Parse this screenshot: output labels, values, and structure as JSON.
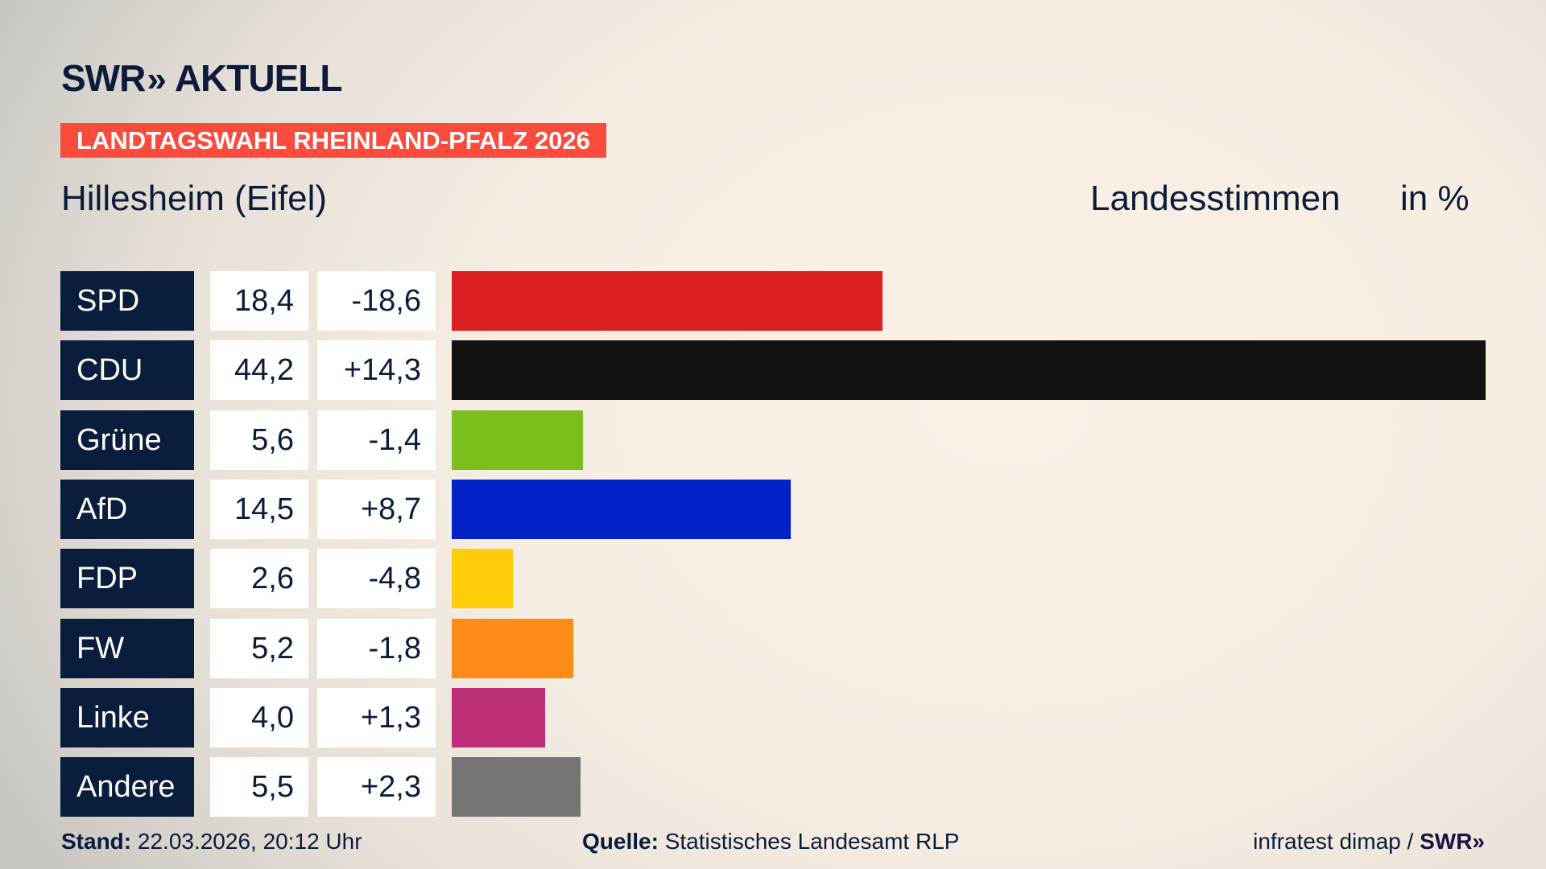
{
  "header": {
    "logo_text": "SWR",
    "logo_chevrons": "»",
    "logo_suffix": "AKTUELL",
    "banner": "LANDTAGSWAHL RHEINLAND-PFALZ 2026",
    "region": "Hillesheim (Eifel)",
    "metric": "Landesstimmen",
    "unit": "in %"
  },
  "chart_data": {
    "type": "bar",
    "orientation": "horizontal",
    "categories": [
      "SPD",
      "CDU",
      "Grüne",
      "AfD",
      "FDP",
      "FW",
      "Linke",
      "Andere"
    ],
    "values": [
      18.4,
      44.2,
      5.6,
      14.5,
      2.6,
      5.2,
      4.0,
      5.5
    ],
    "value_labels": [
      "18,4",
      "44,2",
      "5,6",
      "14,5",
      "2,6",
      "5,2",
      "4,0",
      "5,5"
    ],
    "diff_labels": [
      "-18,6",
      "+14,3",
      "-1,4",
      "+8,7",
      "-4,8",
      "-1,8",
      "+1,3",
      "+2,3"
    ],
    "diffs": [
      -18.6,
      14.3,
      -1.4,
      8.7,
      -4.8,
      -1.8,
      1.3,
      2.3
    ],
    "colors": [
      "#d91f20",
      "#121212",
      "#7abf1c",
      "#0021c8",
      "#ffcc0a",
      "#ff8c18",
      "#be3075",
      "#757575"
    ],
    "xlim": [
      0,
      44.2
    ],
    "grid": false
  },
  "footer": {
    "stand_label": "Stand:",
    "stand_value": "22.03.2026, 20:12 Uhr",
    "source_label": "Quelle:",
    "source_value": "Statistisches Landesamt RLP",
    "credit": "infratest dimap /",
    "credit_logo": "SWR»"
  }
}
